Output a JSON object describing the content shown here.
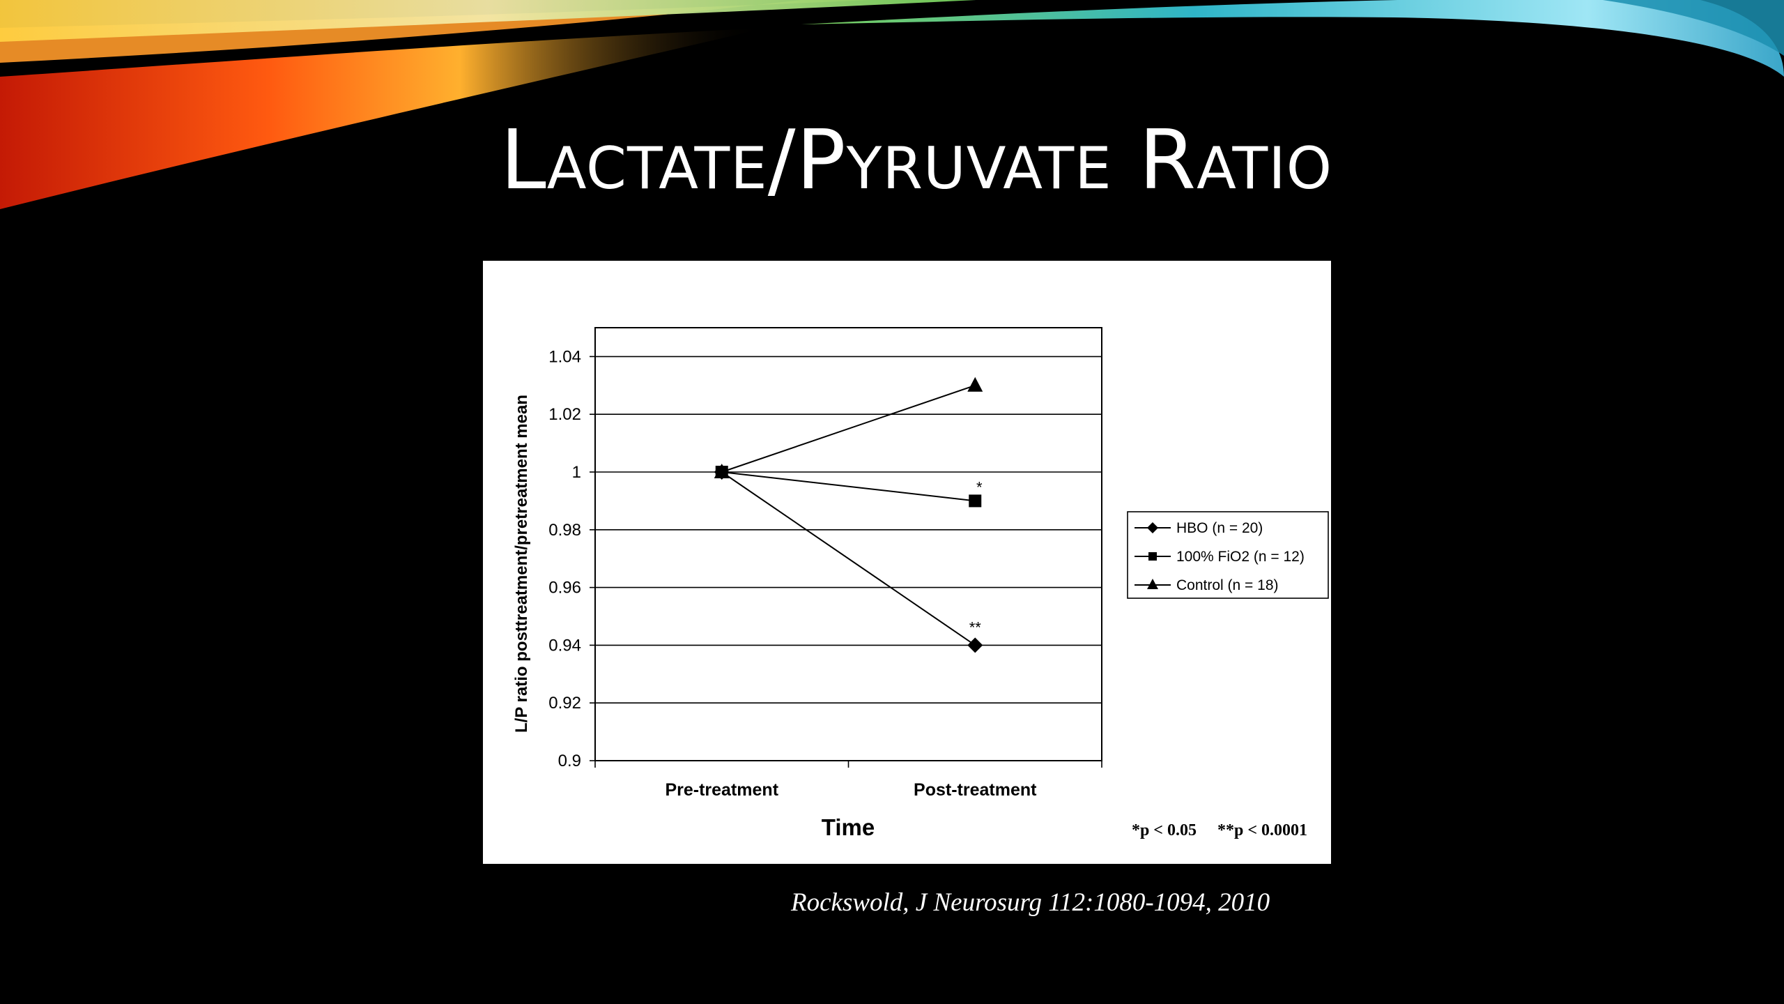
{
  "slide": {
    "title": "Lactate/Pyruvate Ratio",
    "citation": "Rockswold, J Neurosurg 112:1080-1094, 2010"
  },
  "colors": {
    "background": "#000000",
    "panel": "#ffffff",
    "ink": "#000000",
    "swoosh": [
      "#ff2a00",
      "#ff8c1a",
      "#ffd34d",
      "#9bdc5a",
      "#46c7e8"
    ]
  },
  "chart_data": {
    "type": "line",
    "xlabel": "Time",
    "ylabel": "L/P ratio posttreatment/pretreatment mean",
    "categories": [
      "Pre-treatment",
      "Post-treatment"
    ],
    "ylim": [
      0.9,
      1.05
    ],
    "yticks": [
      {
        "v": 0.9,
        "label": "0.9"
      },
      {
        "v": 0.92,
        "label": "0.92"
      },
      {
        "v": 0.94,
        "label": "0.94"
      },
      {
        "v": 0.96,
        "label": "0.96"
      },
      {
        "v": 0.98,
        "label": "0.98"
      },
      {
        "v": 1.0,
        "label": "1"
      },
      {
        "v": 1.02,
        "label": "1.02"
      },
      {
        "v": 1.04,
        "label": "1.04"
      }
    ],
    "grid": true,
    "legend_position": "right",
    "series": [
      {
        "name": "HBO (n = 20)",
        "marker": "diamond",
        "values": [
          1.0,
          0.94
        ],
        "annotations": [
          "",
          "**"
        ]
      },
      {
        "name": "100% FiO2 (n = 12)",
        "marker": "square",
        "values": [
          1.0,
          0.99
        ],
        "annotations": [
          "",
          "*"
        ]
      },
      {
        "name": "Control (n = 18)",
        "marker": "triangle",
        "values": [
          1.0,
          1.03
        ],
        "annotations": [
          "",
          ""
        ]
      }
    ],
    "footnote": "*p < 0.05     **p < 0.0001"
  }
}
